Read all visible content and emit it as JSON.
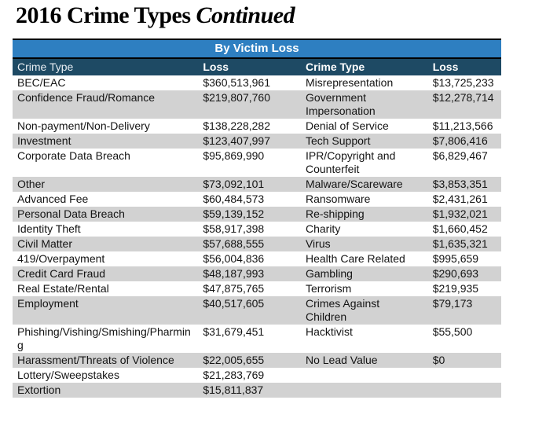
{
  "title": {
    "main": "2016 Crime Types",
    "continued": "Continued"
  },
  "table": {
    "caption": "By Victim Loss",
    "columns": [
      "Crime Type",
      "Loss",
      "Crime Type",
      "Loss"
    ],
    "rows": [
      [
        "BEC/EAC",
        "$360,513,961",
        "Misrepresentation",
        "$13,725,233"
      ],
      [
        "Confidence Fraud/Romance",
        "$219,807,760",
        "Government Impersonation",
        "$12,278,714"
      ],
      [
        "Non-payment/Non-Delivery",
        "$138,228,282",
        "Denial of Service",
        "$11,213,566"
      ],
      [
        "Investment",
        "$123,407,997",
        "Tech Support",
        "$7,806,416"
      ],
      [
        "Corporate Data Breach",
        "$95,869,990",
        "IPR/Copyright and Counterfeit",
        "$6,829,467"
      ],
      [
        "Other",
        "$73,092,101",
        "Malware/Scareware",
        "$3,853,351"
      ],
      [
        "Advanced Fee",
        "$60,484,573",
        "Ransomware",
        "$2,431,261"
      ],
      [
        "Personal Data Breach",
        "$59,139,152",
        "Re-shipping",
        "$1,932,021"
      ],
      [
        "Identity Theft",
        "$58,917,398",
        "Charity",
        "$1,660,452"
      ],
      [
        "Civil Matter",
        "$57,688,555",
        "Virus",
        "$1,635,321"
      ],
      [
        "419/Overpayment",
        "$56,004,836",
        "Health Care Related",
        "$995,659"
      ],
      [
        "Credit Card Fraud",
        "$48,187,993",
        "Gambling",
        "$290,693"
      ],
      [
        "Real Estate/Rental",
        "$47,875,765",
        "Terrorism",
        "$219,935"
      ],
      [
        "Employment",
        "$40,517,605",
        "Crimes Against Children",
        "$79,173"
      ],
      [
        "Phishing/Vishing/Smishing/Pharming",
        "$31,679,451",
        "Hacktivist",
        "$55,500"
      ],
      [
        "Harassment/Threats of Violence",
        "$22,005,655",
        "No Lead Value",
        "$0"
      ],
      [
        "Lottery/Sweepstakes",
        "$21,283,769",
        "",
        ""
      ],
      [
        "Extortion",
        "$15,811,837",
        "",
        ""
      ]
    ],
    "colors": {
      "caption_bar": "#2e7fc1",
      "header_bar": "#1e4a64",
      "row_stripe": "#d2d2d2",
      "caption_border": "#000000"
    }
  }
}
